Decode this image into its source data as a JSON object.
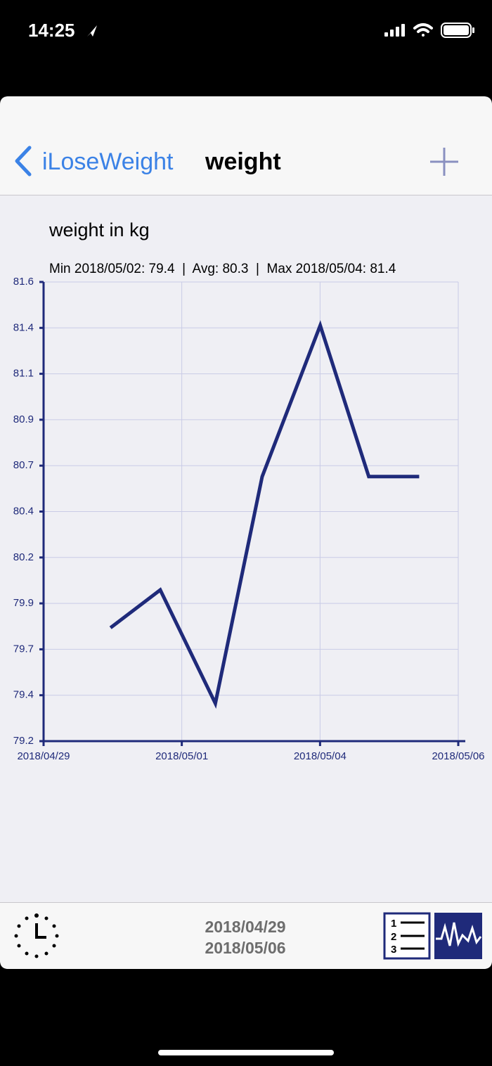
{
  "status_bar": {
    "time": "14:25"
  },
  "nav": {
    "back": "iLoseWeight",
    "title": "weight"
  },
  "chart_data": {
    "type": "line",
    "title": "weight in kg",
    "subtitle": "Min 2018/05/02: 79.4  |  Avg: 80.3  |  Max 2018/05/04: 81.4",
    "x": [
      1.13,
      1.97,
      2.9,
      3.69,
      4.67,
      5.49,
      6.34
    ],
    "values": [
      79.8,
      80.0,
      79.4,
      80.6,
      81.4,
      80.6,
      80.6
    ],
    "color": "#1f2a7a",
    "xlim": [
      0,
      7
    ],
    "xticks": [
      {
        "value": 0,
        "label": "2018/04/29"
      },
      {
        "value": 2.333,
        "label": "2018/05/01"
      },
      {
        "value": 4.667,
        "label": "2018/05/04"
      },
      {
        "value": 7,
        "label": "2018/05/06"
      }
    ],
    "ylim": [
      79.2,
      81.63
    ],
    "yticks": [
      {
        "value": 79.2,
        "label": "79.2"
      },
      {
        "value": 79.443,
        "label": "79.4"
      },
      {
        "value": 79.686,
        "label": "79.7"
      },
      {
        "value": 79.929,
        "label": "79.9"
      },
      {
        "value": 80.172,
        "label": "80.2"
      },
      {
        "value": 80.415,
        "label": "80.4"
      },
      {
        "value": 80.658,
        "label": "80.7"
      },
      {
        "value": 80.901,
        "label": "80.9"
      },
      {
        "value": 81.144,
        "label": "81.1"
      },
      {
        "value": 81.387,
        "label": "81.4"
      },
      {
        "value": 81.63,
        "label": "81.6"
      }
    ],
    "grid": true
  },
  "footer": {
    "date_range": [
      "2018/04/29",
      "2018/05/06"
    ]
  }
}
